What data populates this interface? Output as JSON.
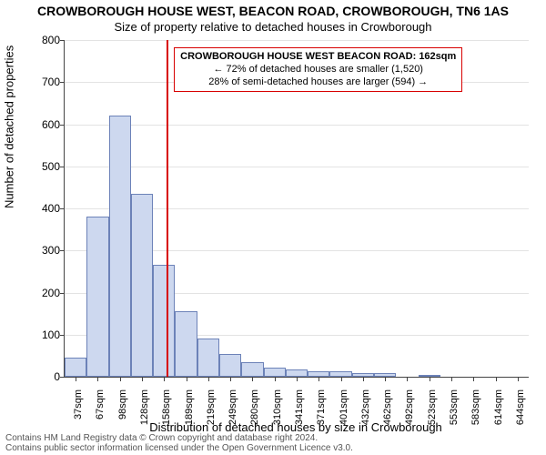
{
  "title": "CROWBOROUGH HOUSE WEST, BEACON ROAD, CROWBOROUGH, TN6 1AS",
  "subtitle": "Size of property relative to detached houses in Crowborough",
  "chart": {
    "type": "histogram",
    "ylabel": "Number of detached properties",
    "xlabel": "Distribution of detached houses by size in Crowborough",
    "ylim": [
      0,
      800
    ],
    "ytick_step": 100,
    "yticks": [
      0,
      100,
      200,
      300,
      400,
      500,
      600,
      700,
      800
    ],
    "xticks": [
      "37sqm",
      "67sqm",
      "98sqm",
      "128sqm",
      "158sqm",
      "189sqm",
      "219sqm",
      "249sqm",
      "280sqm",
      "310sqm",
      "341sqm",
      "371sqm",
      "401sqm",
      "432sqm",
      "462sqm",
      "492sqm",
      "523sqm",
      "553sqm",
      "583sqm",
      "614sqm",
      "644sqm"
    ],
    "values": [
      45,
      380,
      620,
      435,
      265,
      155,
      90,
      55,
      35,
      22,
      18,
      12,
      12,
      8,
      8,
      0,
      3,
      0,
      0,
      0,
      0
    ],
    "bar_fill": "#cdd8ef",
    "bar_stroke": "#6c82b8",
    "grid_color": "#e3e3e3",
    "axis_color": "#444444",
    "background_color": "#ffffff",
    "bar_width_ratio": 1.0,
    "title_fontsize": 14,
    "subtitle_fontsize": 13,
    "axis_label_fontsize": 13,
    "tick_fontsize": 12
  },
  "marker": {
    "value_sqm": 162,
    "color": "#d80000",
    "callout": {
      "title": "CROWBOROUGH HOUSE WEST BEACON ROAD: 162sqm",
      "line1": "← 72% of detached houses are smaller (1,520)",
      "line2": "28% of semi-detached houses are larger (594) →",
      "border_color": "#d80000",
      "bg_color": "#ffffff",
      "fontsize": 11
    }
  },
  "footer": {
    "line1": "Contains HM Land Registry data © Crown copyright and database right 2024.",
    "line2": "Contains public sector information licensed under the Open Government Licence v3.0."
  }
}
